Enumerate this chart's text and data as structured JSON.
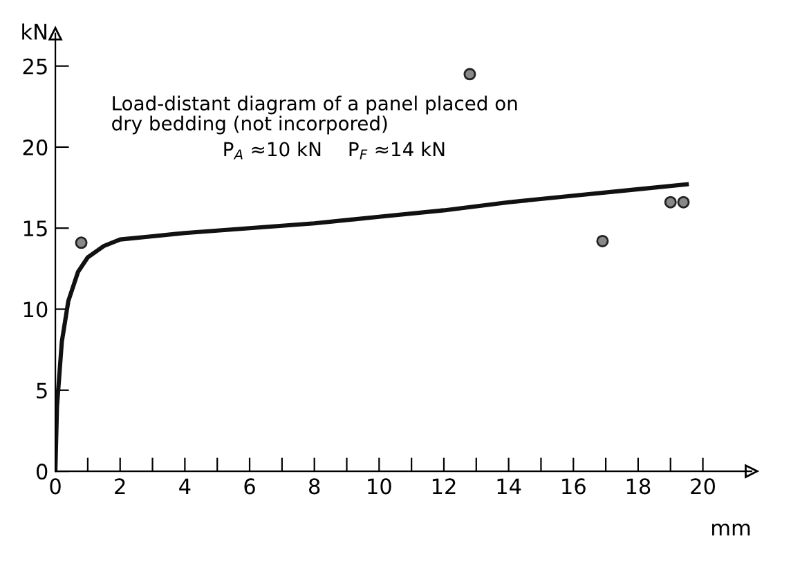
{
  "chart_data": {
    "type": "line",
    "xlabel": "mm",
    "ylabel": "kN",
    "annotations": [
      "Load-distant diagram of a panel placed on\ndry bedding (not incorpored)",
      "P$_{A}$ ≈10 kN",
      "P$_{F}$ ≈14 kN"
    ],
    "series": [
      {
        "color": "#111111",
        "marker": "none",
        "x": [
          0,
          0.05,
          0.2,
          0.4,
          0.7,
          1,
          1.5,
          2,
          3,
          4,
          6,
          8,
          10,
          12,
          14,
          16,
          18,
          19.5
        ],
        "values": [
          0,
          4,
          8,
          10.5,
          12.3,
          13.2,
          13.9,
          14.3,
          14.5,
          14.7,
          15.0,
          15.3,
          15.7,
          16.1,
          16.6,
          17.0,
          17.4,
          17.7
        ]
      },
      {
        "type": "scatter",
        "color": "#888888",
        "marker": "circle",
        "x": [
          0.8,
          12.8,
          16.9,
          19.0,
          19.4
        ],
        "values": [
          14.1,
          24.5,
          14.2,
          16.6,
          16.6
        ]
      }
    ],
    "xlim": [
      0,
      21.5
    ],
    "ylim": [
      0,
      27
    ],
    "xticks": [
      0,
      {
        "value": 1,
        "label": null
      },
      2,
      {
        "value": 3,
        "label": null
      },
      4,
      {
        "value": 5,
        "label": null
      },
      6,
      {
        "value": 7,
        "label": null
      },
      8,
      {
        "value": 9,
        "label": null
      },
      10,
      {
        "value": 11,
        "label": null
      },
      12,
      {
        "value": 13,
        "label": null
      },
      14,
      {
        "value": 15,
        "label": null
      },
      16,
      {
        "value": 17,
        "label": null
      },
      18,
      {
        "value": 19,
        "label": null
      },
      20
    ],
    "yticks": [
      0,
      5,
      10,
      15,
      20,
      25
    ],
    "grid": false,
    "legend": false
  }
}
